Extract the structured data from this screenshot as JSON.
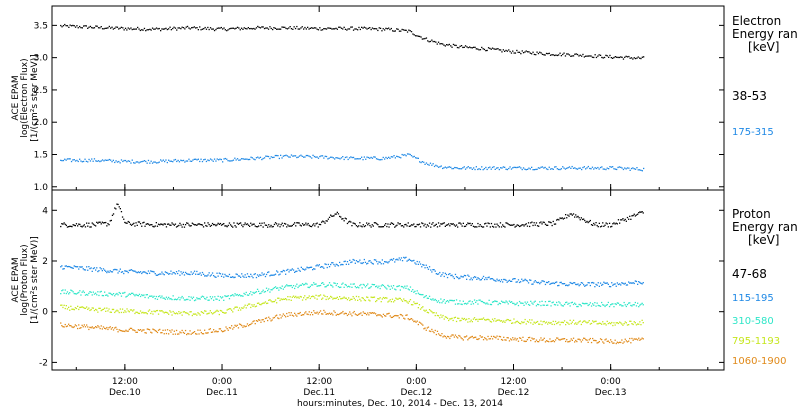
{
  "figure": {
    "x_title": "hours:minutes, Dec. 10, 2014 - Dec. 13, 2014",
    "x_ticks": [
      {
        "time": "12:00",
        "date": "Dec.10",
        "hour": 12
      },
      {
        "time": "0:00",
        "date": "Dec.11",
        "hour": 24
      },
      {
        "time": "12:00",
        "date": "Dec.11",
        "hour": 36
      },
      {
        "time": "0:00",
        "date": "Dec.12",
        "hour": 48
      },
      {
        "time": "12:00",
        "date": "Dec.12",
        "hour": 60
      },
      {
        "time": "0:00",
        "date": "Dec.13",
        "hour": 72
      }
    ]
  },
  "electron_panel": {
    "ylabel": [
      "ACE EPAM",
      "log(Electron Flux)",
      "[1/(cm²s ster MeV)]"
    ],
    "legend_title": [
      "Electron",
      "Energy ran",
      "[keV]"
    ],
    "yticks": [
      "3.5",
      "3.0",
      "2.5",
      "2.0",
      "1.5",
      "1.0"
    ]
  },
  "proton_panel": {
    "ylabel": [
      "ACE EPAM",
      "log(Proton Flux)",
      "[1/(cm²s ster MeV)]"
    ],
    "legend_title": [
      "Proton",
      "Energy ran",
      "[keV]"
    ],
    "yticks": [
      "4",
      "2",
      "0",
      "-2"
    ]
  },
  "chart_data": [
    {
      "type": "scatter",
      "x_units": "hours since Dec. 10, 2014 00:00",
      "xlim": [
        3,
        86
      ],
      "ylim": [
        0.95,
        3.8
      ],
      "series": [
        {
          "name": "38-53",
          "color": "#000000",
          "x": [
            4,
            8,
            12,
            16,
            20,
            24,
            28,
            32,
            36,
            40,
            44,
            47,
            49,
            51,
            53,
            56,
            60,
            64,
            68,
            72,
            76
          ],
          "y": [
            3.5,
            3.48,
            3.46,
            3.45,
            3.47,
            3.45,
            3.47,
            3.47,
            3.46,
            3.46,
            3.45,
            3.42,
            3.3,
            3.22,
            3.18,
            3.15,
            3.1,
            3.07,
            3.05,
            3.02,
            3.0
          ]
        },
        {
          "name": "175-315",
          "color": "#1e88e5",
          "x": [
            4,
            8,
            12,
            16,
            20,
            24,
            28,
            32,
            36,
            40,
            44,
            47,
            49,
            51,
            53,
            56,
            60,
            64,
            68,
            72,
            76
          ],
          "y": [
            1.42,
            1.42,
            1.4,
            1.4,
            1.42,
            1.42,
            1.45,
            1.48,
            1.47,
            1.45,
            1.45,
            1.5,
            1.38,
            1.32,
            1.3,
            1.3,
            1.3,
            1.3,
            1.3,
            1.3,
            1.28
          ]
        }
      ]
    },
    {
      "type": "scatter",
      "x_units": "hours since Dec. 10, 2014 00:00",
      "xlim": [
        3,
        86
      ],
      "ylim": [
        -2.3,
        4.8
      ],
      "series": [
        {
          "name": "47-68",
          "color": "#000000",
          "x": [
            4,
            8,
            10,
            11,
            12,
            16,
            24,
            30,
            36,
            38,
            40,
            48,
            60,
            65,
            67,
            70,
            72,
            76
          ],
          "y": [
            3.45,
            3.45,
            3.5,
            4.3,
            3.5,
            3.45,
            3.45,
            3.45,
            3.45,
            3.9,
            3.45,
            3.45,
            3.45,
            3.5,
            3.9,
            3.45,
            3.45,
            3.95
          ]
        },
        {
          "name": "115-195",
          "color": "#1e88e5",
          "x": [
            4,
            8,
            12,
            16,
            20,
            24,
            28,
            32,
            36,
            40,
            44,
            47,
            49,
            51,
            53,
            56,
            60,
            64,
            68,
            72,
            76
          ],
          "y": [
            1.8,
            1.7,
            1.6,
            1.55,
            1.55,
            1.45,
            1.45,
            1.6,
            1.8,
            2.0,
            2.0,
            2.1,
            1.8,
            1.5,
            1.4,
            1.35,
            1.25,
            1.15,
            1.1,
            1.1,
            1.2
          ]
        },
        {
          "name": "310-580",
          "color": "#2ee6c8",
          "x": [
            4,
            8,
            12,
            16,
            20,
            24,
            28,
            32,
            36,
            40,
            44,
            47,
            49,
            51,
            53,
            56,
            60,
            64,
            68,
            72,
            76
          ],
          "y": [
            0.8,
            0.75,
            0.7,
            0.6,
            0.55,
            0.55,
            0.8,
            1.0,
            1.1,
            1.05,
            1.0,
            0.95,
            0.6,
            0.45,
            0.4,
            0.4,
            0.35,
            0.35,
            0.3,
            0.3,
            0.3
          ]
        },
        {
          "name": "795-1193",
          "color": "#c6e61e",
          "x": [
            4,
            8,
            12,
            16,
            20,
            24,
            28,
            32,
            36,
            40,
            44,
            47,
            49,
            51,
            53,
            56,
            60,
            64,
            68,
            72,
            76
          ],
          "y": [
            0.2,
            0.1,
            0.05,
            0.0,
            -0.05,
            0.0,
            0.3,
            0.55,
            0.6,
            0.55,
            0.5,
            0.45,
            0.1,
            -0.2,
            -0.3,
            -0.3,
            -0.35,
            -0.4,
            -0.4,
            -0.45,
            -0.4
          ]
        },
        {
          "name": "1060-1900",
          "color": "#e08a1a",
          "x": [
            4,
            8,
            12,
            16,
            20,
            24,
            28,
            32,
            36,
            40,
            44,
            47,
            49,
            51,
            53,
            56,
            60,
            64,
            68,
            72,
            76
          ],
          "y": [
            -0.5,
            -0.6,
            -0.7,
            -0.75,
            -0.8,
            -0.7,
            -0.4,
            -0.1,
            0.0,
            -0.05,
            -0.1,
            -0.2,
            -0.6,
            -0.9,
            -1.0,
            -1.0,
            -1.05,
            -1.1,
            -1.1,
            -1.15,
            -1.1
          ]
        }
      ]
    }
  ]
}
